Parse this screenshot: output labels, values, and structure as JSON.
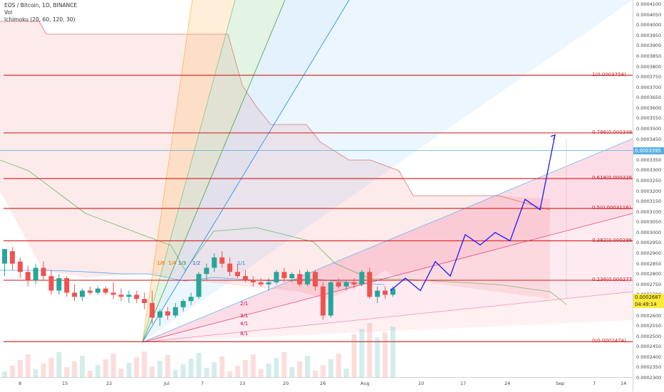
{
  "header": {
    "symbol_title": "EOS / Bitcoin, 1D, BINANCE",
    "vol_label": "Vol",
    "ichimoku_label": "Ichimoku (20, 60, 120, 30)"
  },
  "colors": {
    "fib_line": "#d32f2f",
    "up_candle": "#26a69a",
    "down_candle": "#ef5350",
    "projection": "#1a1aff",
    "current_tag": "#ffeb3b",
    "hline_tag": "#5aaee0"
  },
  "chart_data": {
    "type": "candlestick",
    "title": "EOS / Bitcoin, 1D, BINANCE",
    "indicators": [
      "Vol",
      "Ichimoku (20, 60, 120, 30)"
    ],
    "y_range": [
      0.00023,
      0.00041
    ],
    "y_ticks": [
      "0.0004100",
      "0.0004050",
      "0.0004000",
      "0.0003950",
      "0.0003900",
      "0.0003850",
      "0.0003800",
      "0.0003750",
      "0.0003700",
      "0.0003650",
      "0.0003600",
      "0.0003550",
      "0.0003500",
      "0.0003450",
      "0.0003400",
      "0.0003350",
      "0.0003300",
      "0.0003250",
      "0.0003200",
      "0.0003150",
      "0.0003100",
      "0.0003050",
      "0.0003000",
      "0.0002950",
      "0.0002900",
      "0.0002850",
      "0.0002800",
      "0.0002750",
      "0.0002700",
      "0.0002650",
      "0.0002600",
      "0.0002550",
      "0.0002500",
      "0.0002450",
      "0.0002400",
      "0.0002350",
      "0.0002300"
    ],
    "x_ticks": [
      "8",
      "15",
      "22",
      "Jul",
      "7",
      "13",
      "20",
      "26",
      "Aug",
      "10",
      "17",
      "24",
      "Sep",
      "7",
      "14"
    ],
    "fib_levels": [
      {
        "label": "1(0.0003758)",
        "value": 0.0003758
      },
      {
        "label": "0.786(0.000348",
        "value": 0.000348
      },
      {
        "label": "0.618(0.000326",
        "value": 0.000326
      },
      {
        "label": "0.5(0.0003116)",
        "value": 0.0003116
      },
      {
        "label": "0.382(0.000296",
        "value": 0.000296
      },
      {
        "label": "0.236(0.000277",
        "value": 0.000277
      },
      {
        "label": "0(0.0002474)",
        "value": 0.0002474
      }
    ],
    "horizontal_line": {
      "label": "0.0003395",
      "value": 0.0003395
    },
    "current_price": {
      "label": "0.0002687",
      "value": 0.0002687,
      "countdown": "04:49:14"
    },
    "gann_fan_labels": [
      "1/8",
      "1/4",
      "1/3",
      "1/2",
      "1/1",
      "2/1",
      "3/1",
      "4/1",
      "8/1"
    ],
    "candles": [
      [
        0.000285,
        0.000292,
        0.000279,
        0.000292
      ],
      [
        0.000291,
        0.000293,
        0.000282,
        0.000285
      ],
      [
        0.000286,
        0.000288,
        0.000278,
        0.000281
      ],
      [
        0.000281,
        0.000284,
        0.000274,
        0.000277
      ],
      [
        0.000277,
        0.000285,
        0.000275,
        0.000283
      ],
      [
        0.000283,
        0.000286,
        0.000277,
        0.000279
      ],
      [
        0.000279,
        0.000282,
        0.00027,
        0.000272
      ],
      [
        0.000272,
        0.00028,
        0.00027,
        0.000278
      ],
      [
        0.000278,
        0.000279,
        0.000269,
        0.000271
      ],
      [
        0.000271,
        0.000275,
        0.000267,
        0.000269
      ],
      [
        0.000269,
        0.000273,
        0.000267,
        0.000272
      ],
      [
        0.000272,
        0.000274,
        0.00027,
        0.000271
      ],
      [
        0.000271,
        0.000274,
        0.00027,
        0.000273
      ],
      [
        0.000273,
        0.000274,
        0.00027,
        0.000271
      ],
      [
        0.000271,
        0.000276,
        0.000268,
        0.00027
      ],
      [
        0.00027,
        0.000273,
        0.000267,
        0.000269
      ],
      [
        0.000269,
        0.000272,
        0.000266,
        0.00027
      ],
      [
        0.00027,
        0.000272,
        0.000266,
        0.000268
      ],
      [
        0.000268,
        0.000271,
        0.000263,
        0.000266
      ],
      [
        0.000266,
        0.000272,
        0.000256,
        0.000259
      ],
      [
        0.000259,
        0.000263,
        0.000255,
        0.000262
      ],
      [
        0.000262,
        0.000264,
        0.000258,
        0.00026
      ],
      [
        0.00026,
        0.000266,
        0.000259,
        0.000264
      ],
      [
        0.000264,
        0.000268,
        0.000262,
        0.000267
      ],
      [
        0.000267,
        0.000271,
        0.000265,
        0.000269
      ],
      [
        0.000269,
        0.000281,
        0.000268,
        0.00028
      ],
      [
        0.00028,
        0.000285,
        0.000277,
        0.000283
      ],
      [
        0.000283,
        0.00029,
        0.000281,
        0.000288
      ],
      [
        0.000288,
        0.000291,
        0.000283,
        0.000285
      ],
      [
        0.000285,
        0.000288,
        0.000279,
        0.000281
      ],
      [
        0.000281,
        0.000285,
        0.000278,
        0.000279
      ],
      [
        0.000279,
        0.000282,
        0.000276,
        0.000277
      ],
      [
        0.000277,
        0.000279,
        0.000274,
        0.000276
      ],
      [
        0.000276,
        0.000278,
        0.000274,
        0.000275
      ],
      [
        0.000275,
        0.000278,
        0.000272,
        0.000276
      ],
      [
        0.000276,
        0.000282,
        0.000275,
        0.000281
      ],
      [
        0.000281,
        0.000283,
        0.000276,
        0.000278
      ],
      [
        0.000278,
        0.000281,
        0.000276,
        0.00028
      ],
      [
        0.00028,
        0.000282,
        0.000274,
        0.000275
      ],
      [
        0.000275,
        0.000282,
        0.000274,
        0.000281
      ],
      [
        0.000281,
        0.000282,
        0.000272,
        0.000274
      ],
      [
        0.000274,
        0.000276,
        0.000258,
        0.00026
      ],
      [
        0.00026,
        0.000277,
        0.000259,
        0.000276
      ],
      [
        0.000276,
        0.000278,
        0.000273,
        0.000274
      ],
      [
        0.000274,
        0.000277,
        0.000272,
        0.000276
      ],
      [
        0.000276,
        0.000278,
        0.000273,
        0.000275
      ],
      [
        0.000275,
        0.000282,
        0.000274,
        0.000281
      ],
      [
        0.000281,
        0.000283,
        0.000268,
        0.000269
      ],
      [
        0.000269,
        0.000274,
        0.000266,
        0.000272
      ],
      [
        0.000272,
        0.000274,
        0.000268,
        0.00027
      ],
      [
        0.00027,
        0.000274,
        0.000269,
        0.000273
      ]
    ],
    "projection_path": [
      0.000272,
      0.000278,
      0.000272,
      0.000286,
      0.000279,
      0.000299,
      0.000294,
      0.0003,
      0.000296,
      0.000316,
      0.000311,
      0.000347
    ]
  },
  "icons": {
    "countdown": "clock-icon"
  }
}
